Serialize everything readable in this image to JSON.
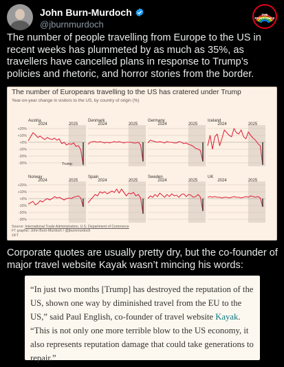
{
  "author": {
    "name": "John Burn-Murdoch",
    "handle": "@jburnmurdoch",
    "verified_icon": "verified-badge-icon",
    "badge_text": "THE RESISTANCE"
  },
  "tweet_text_1": "The number of people travelling from Europe to the US in recent weeks has plummeted by as much as 35%, as travellers have cancelled plans in response to Trump’s policies and rhetoric, and horror stories from the border.",
  "chart_card": {
    "title": "The number of Europeans travelling to the US has cratered under Trump",
    "subtitle": "Year-on-year change in visitors to the US, by country of origin (%)",
    "source_link": "International Trade Administration, U.S. Department of Commerce",
    "source_prefix": "Source: ",
    "credit": "FT graphic: John Burn-Murdoch / @jburnmurdoch",
    "logo": "©FT",
    "trump_label": "Trump",
    "colors": {
      "line": "#e0283f",
      "end_bar": "#33302e",
      "shade": "#e6d9ce",
      "grid": "#cfc2b4"
    }
  },
  "chart_data": {
    "type": "line",
    "y_ticks": [
      "+20%",
      "+10%",
      "+0%",
      "-10%",
      "-20%",
      "-30%"
    ],
    "ylim": [
      -35,
      25
    ],
    "x_year_labels": [
      "2024",
      "2025"
    ],
    "grid": true,
    "panels": [
      {
        "country": "Austria",
        "values": [
          2,
          8,
          14,
          11,
          7,
          9,
          6,
          4,
          7,
          5,
          4,
          6,
          3,
          5,
          -2,
          0,
          -4,
          -2,
          -3,
          -1,
          -6,
          -5,
          -11,
          -33
        ]
      },
      {
        "country": "Denmark",
        "values": [
          -3,
          0,
          1,
          1,
          0,
          1,
          0,
          -1,
          0,
          -1,
          0,
          1,
          0,
          1,
          0,
          -1,
          0,
          0,
          0,
          -1,
          -1,
          0,
          -4,
          -28
        ]
      },
      {
        "country": "Germany",
        "values": [
          -1,
          3,
          2,
          1,
          0,
          1,
          0,
          -1,
          1,
          0,
          0,
          -1,
          -1,
          1,
          0,
          -2,
          -1,
          -3,
          -4,
          -6,
          -9,
          -10,
          -12,
          -28
        ]
      },
      {
        "country": "Iceland",
        "values": [
          -5,
          10,
          -10,
          8,
          12,
          -5,
          6,
          18,
          14,
          10,
          8,
          20,
          14,
          12,
          18,
          8,
          5,
          15,
          10,
          6,
          3,
          -2,
          -5,
          -33
        ]
      },
      {
        "country": "Norway",
        "values": [
          -8,
          -6,
          -4,
          -9,
          -7,
          -3,
          -5,
          -2,
          0,
          -2,
          0,
          3,
          1,
          2,
          0,
          -2,
          0,
          1,
          0,
          2,
          3,
          4,
          1,
          -12
        ]
      },
      {
        "country": "Spain",
        "values": [
          -6,
          -2,
          2,
          6,
          4,
          10,
          8,
          10,
          7,
          9,
          11,
          9,
          14,
          8,
          14,
          9,
          4,
          8,
          7,
          9,
          4,
          6,
          1,
          -22
        ]
      },
      {
        "country": "Sweden",
        "values": [
          0,
          4,
          2,
          6,
          3,
          8,
          5,
          2,
          6,
          3,
          7,
          4,
          5,
          2,
          6,
          7,
          3,
          6,
          5,
          2,
          3,
          6,
          2,
          -18
        ]
      },
      {
        "country": "UK",
        "values": [
          2,
          3,
          2,
          3,
          2,
          2,
          1,
          2,
          2,
          1,
          2,
          3,
          2,
          2,
          1,
          2,
          3,
          2,
          4,
          3,
          2,
          3,
          1,
          -12
        ]
      }
    ]
  },
  "tweet_text_2": "Corporate quotes are usually pretty dry, but the co-founder of major travel website Kayak wasn’t mincing his words:",
  "quote": {
    "part1": "“In just two months [Trump] has destroyed the reputation of the US, shown one way by diminished travel from the EU to the US,” said Paul English, co-founder of travel website ",
    "link": "Kayak",
    "part2": ". “This is not only one more terrible blow to the US economy, it also represents reputation damage that could take generations to repair.”"
  }
}
